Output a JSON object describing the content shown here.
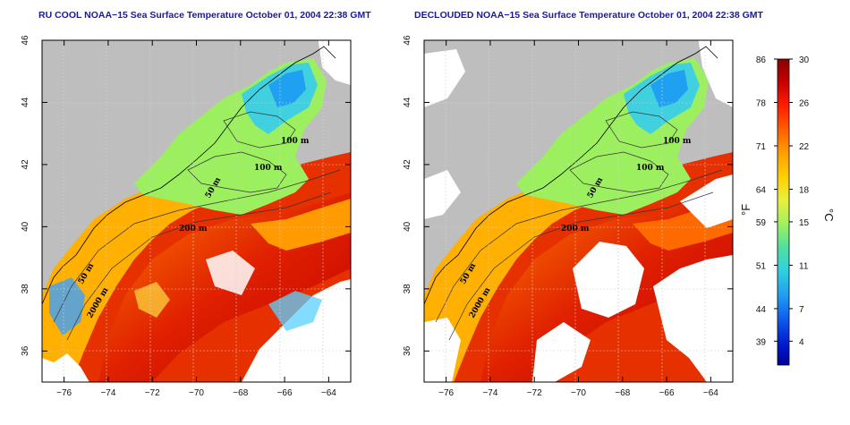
{
  "panels": [
    {
      "id": "left",
      "title": "RU COOL NOAA−15 Sea Surface Temperature October 01, 2004 22:38 GMT",
      "clouds": true
    },
    {
      "id": "right",
      "title": "DECLOUDED NOAA−15 Sea Surface Temperature October 01, 2004 22:38 GMT",
      "clouds": false
    }
  ],
  "axes": {
    "lon_range": [
      -77,
      -63
    ],
    "lat_range": [
      35,
      46
    ],
    "lon_ticks": [
      "−76",
      "−74",
      "−72",
      "−70",
      "−68",
      "−66",
      "−64"
    ],
    "lat_ticks": [
      "36",
      "38",
      "40",
      "42",
      "44",
      "46"
    ]
  },
  "contour_labels": [
    "100 m",
    "100 m",
    "50 m",
    "200 m",
    "50 m",
    "2000 m"
  ],
  "colorbar": {
    "fahrenheit_ticks": [
      "86",
      "78",
      "71",
      "64",
      "59",
      "51",
      "44",
      "39"
    ],
    "celsius_ticks": [
      "30",
      "26",
      "22",
      "18",
      "15",
      "11",
      "7",
      "4"
    ],
    "fahrenheit_unit": "°F",
    "celsius_unit": "°C",
    "colors": [
      "#8b0000",
      "#c80000",
      "#ff2000",
      "#ff6000",
      "#ffa000",
      "#ffd000",
      "#e8f040",
      "#a0f060",
      "#50e0a0",
      "#30d0e0",
      "#20a0f0",
      "#1060f0",
      "#0020d0",
      "#00009a"
    ]
  },
  "colors": {
    "land": "#bebebe",
    "cloud": "#ffffff",
    "title": "#1a1aa0"
  }
}
